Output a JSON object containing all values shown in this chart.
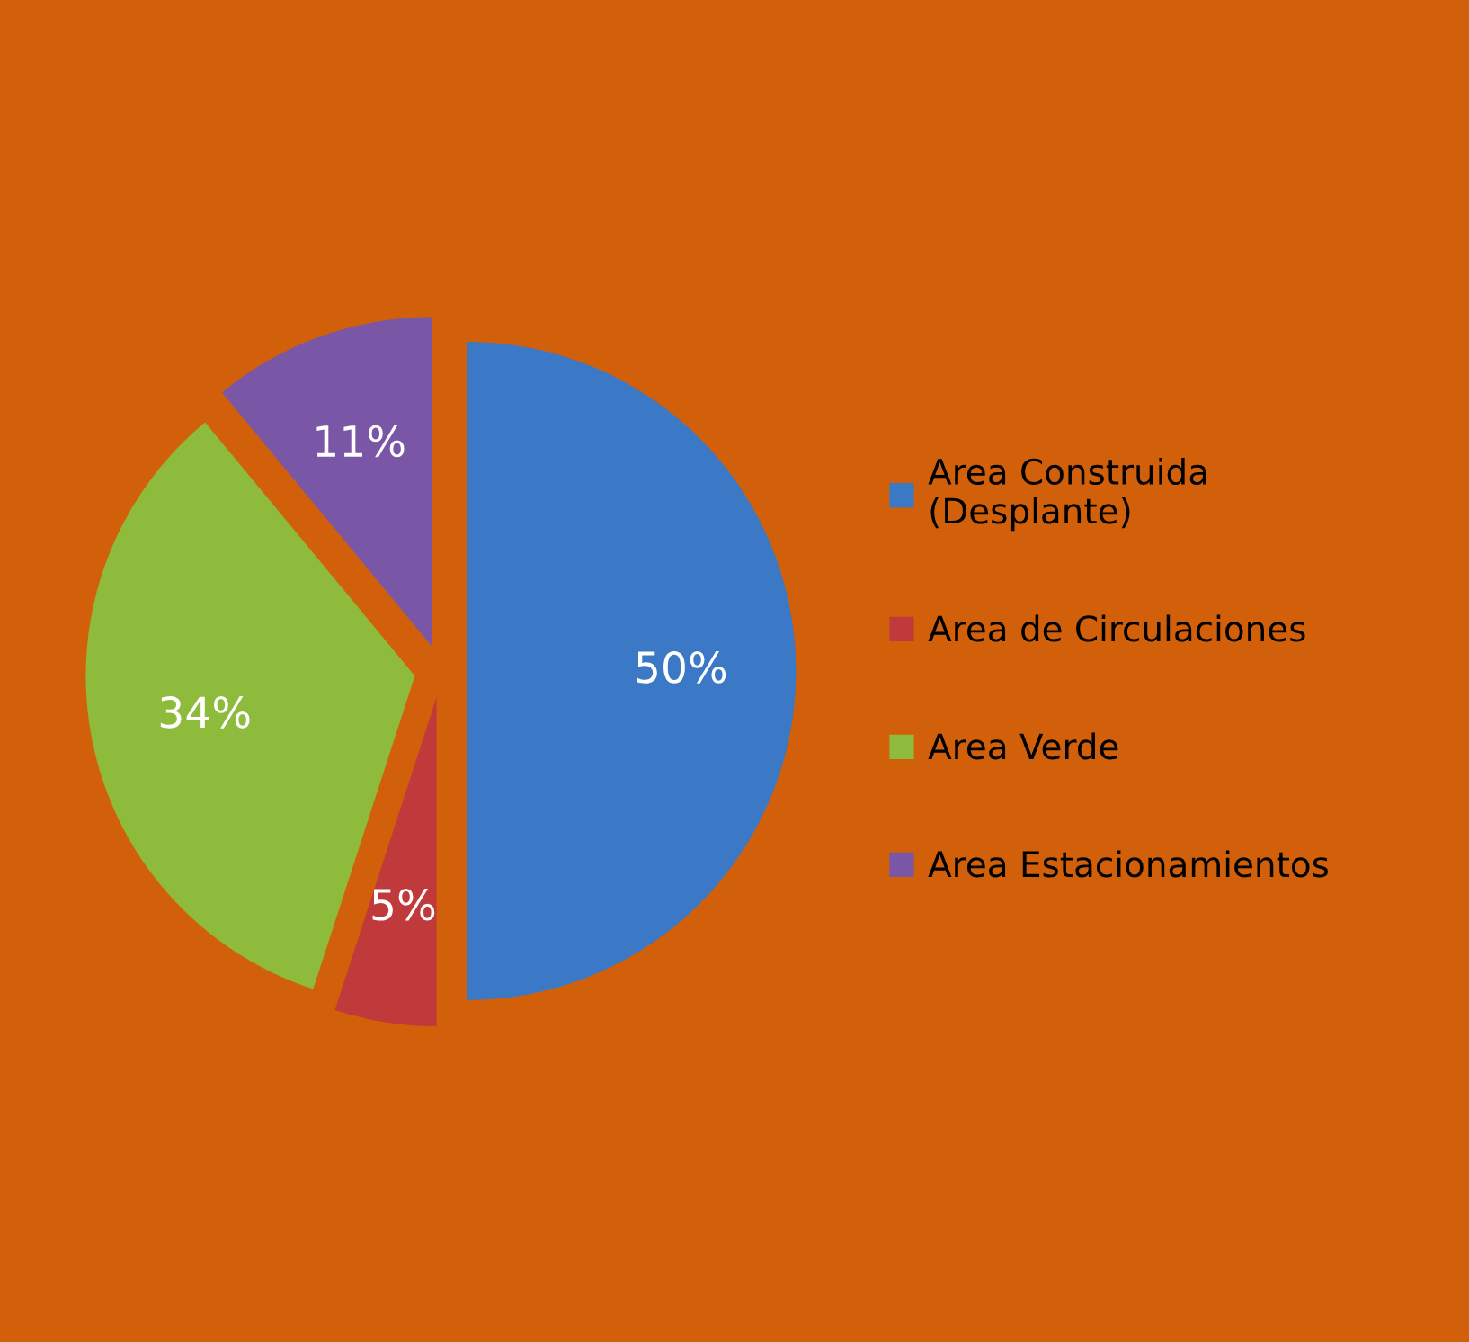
{
  "chart_data": {
    "type": "pie",
    "categories": [
      "Area Construida\n(Desplante)",
      "Area de Circulaciones",
      "Area Verde",
      "Area Estacionamientos"
    ],
    "values": [
      50,
      5,
      34,
      11
    ],
    "value_labels": [
      "50%",
      "5%",
      "34%",
      "11%"
    ],
    "colors": [
      "#3b78c6",
      "#c03a3c",
      "#8fbb3d",
      "#7a56a6"
    ],
    "legend": "right"
  }
}
